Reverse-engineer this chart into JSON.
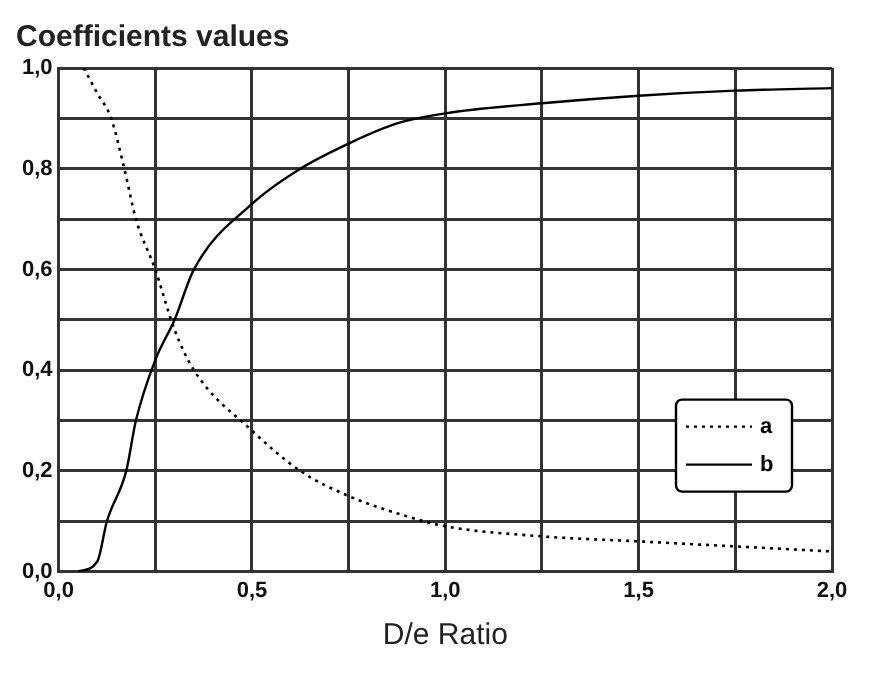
{
  "chart_data": {
    "type": "line",
    "title": "Coefficients values",
    "xlabel": "D/e Ratio",
    "xlim": [
      0,
      2
    ],
    "xticks": [
      {
        "value": 0,
        "label": "0,0"
      },
      {
        "value": 0.25,
        "label": null
      },
      {
        "value": 0.5,
        "label": "0,5"
      },
      {
        "value": 0.75,
        "label": null
      },
      {
        "value": 1,
        "label": "1,0"
      },
      {
        "value": 1.25,
        "label": null
      },
      {
        "value": 1.5,
        "label": "1,5"
      },
      {
        "value": 1.75,
        "label": null
      },
      {
        "value": 2,
        "label": "2,0"
      }
    ],
    "ylim": [
      0,
      1
    ],
    "yticks": [
      {
        "value": 0,
        "label": "0,0"
      },
      {
        "value": 0.1,
        "label": null
      },
      {
        "value": 0.2,
        "label": "0,2"
      },
      {
        "value": 0.3,
        "label": null
      },
      {
        "value": 0.4,
        "label": "0,4"
      },
      {
        "value": 0.5,
        "label": null
      },
      {
        "value": 0.6,
        "label": "0,6"
      },
      {
        "value": 0.7,
        "label": null
      },
      {
        "value": 0.8,
        "label": "0,8"
      },
      {
        "value": 0.9,
        "label": null
      },
      {
        "value": 1,
        "label": "1,0"
      }
    ],
    "grid": true,
    "legend": "bottom right",
    "marker": "none",
    "series": [
      {
        "name": "a",
        "color": "#000000",
        "line_style": "dotted",
        "x": [
          0.065,
          0.1,
          0.136,
          0.17,
          0.2,
          0.25,
          0.3,
          0.35,
          0.5,
          0.625,
          0.75,
          0.9,
          1,
          1.25,
          1.5,
          1.75,
          2
        ],
        "values": [
          1,
          0.95,
          0.9,
          0.8,
          0.7,
          0.6,
          0.48,
          0.4,
          0.28,
          0.2,
          0.15,
          0.11,
          0.09,
          0.07,
          0.06,
          0.05,
          0.04
        ]
      },
      {
        "name": "b",
        "color": "#000000",
        "line_style": "solid",
        "x": [
          0.05,
          0.1,
          0.125,
          0.175,
          0.2,
          0.25,
          0.3,
          0.35,
          0.5,
          0.625,
          0.75,
          0.875,
          1,
          1.25,
          1.5,
          1.75,
          2
        ],
        "values": [
          0,
          0.02,
          0.1,
          0.2,
          0.3,
          0.42,
          0.5,
          0.6,
          0.73,
          0.8,
          0.85,
          0.89,
          0.91,
          0.93,
          0.945,
          0.955,
          0.96
        ]
      }
    ]
  }
}
